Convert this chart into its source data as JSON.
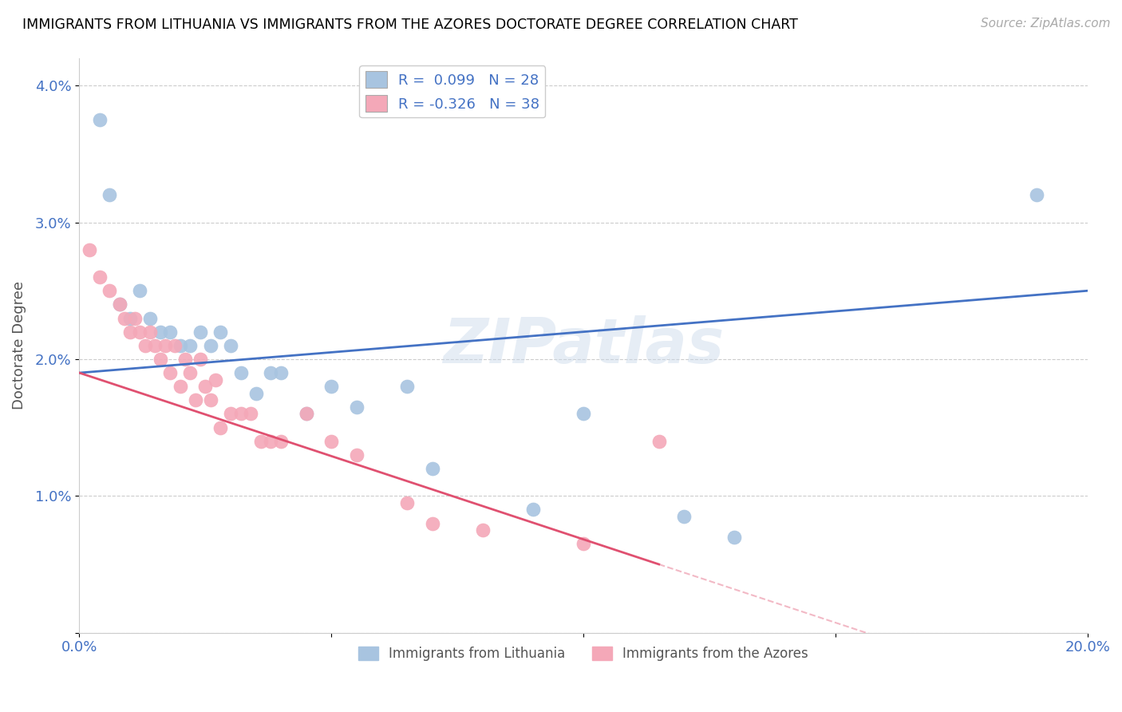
{
  "title": "IMMIGRANTS FROM LITHUANIA VS IMMIGRANTS FROM THE AZORES DOCTORATE DEGREE CORRELATION CHART",
  "source": "Source: ZipAtlas.com",
  "ylabel": "Doctorate Degree",
  "xlim": [
    0.0,
    0.2
  ],
  "ylim": [
    0.0,
    0.042
  ],
  "yticks": [
    0.0,
    0.01,
    0.02,
    0.03,
    0.04
  ],
  "ytick_labels": [
    "",
    "1.0%",
    "2.0%",
    "3.0%",
    "4.0%"
  ],
  "xticks": [
    0.0,
    0.05,
    0.1,
    0.15,
    0.2
  ],
  "xtick_labels": [
    "0.0%",
    "",
    "",
    "",
    "20.0%"
  ],
  "blue_color": "#a8c4e0",
  "pink_color": "#f4a8b8",
  "blue_line_color": "#4472c4",
  "pink_line_color": "#e05070",
  "watermark": "ZIPatlas",
  "legend_label1": "Immigrants from Lithuania",
  "legend_label2": "Immigrants from the Azores",
  "blue_r": "R =  0.099",
  "blue_n": "N = 28",
  "pink_r": "R = -0.326",
  "pink_n": "N = 38",
  "blue_points_x": [
    0.004,
    0.006,
    0.008,
    0.01,
    0.012,
    0.014,
    0.016,
    0.018,
    0.02,
    0.022,
    0.024,
    0.026,
    0.028,
    0.03,
    0.032,
    0.035,
    0.038,
    0.04,
    0.045,
    0.05,
    0.055,
    0.065,
    0.07,
    0.09,
    0.1,
    0.12,
    0.13,
    0.19
  ],
  "blue_points_y": [
    0.0375,
    0.032,
    0.024,
    0.023,
    0.025,
    0.023,
    0.022,
    0.022,
    0.021,
    0.021,
    0.022,
    0.021,
    0.022,
    0.021,
    0.019,
    0.0175,
    0.019,
    0.019,
    0.016,
    0.018,
    0.0165,
    0.018,
    0.012,
    0.009,
    0.016,
    0.0085,
    0.007,
    0.032
  ],
  "pink_points_x": [
    0.002,
    0.004,
    0.006,
    0.008,
    0.009,
    0.01,
    0.011,
    0.012,
    0.013,
    0.014,
    0.015,
    0.016,
    0.017,
    0.018,
    0.019,
    0.02,
    0.021,
    0.022,
    0.023,
    0.024,
    0.025,
    0.026,
    0.027,
    0.028,
    0.03,
    0.032,
    0.034,
    0.036,
    0.038,
    0.04,
    0.045,
    0.05,
    0.055,
    0.065,
    0.07,
    0.08,
    0.1,
    0.115
  ],
  "pink_points_y": [
    0.028,
    0.026,
    0.025,
    0.024,
    0.023,
    0.022,
    0.023,
    0.022,
    0.021,
    0.022,
    0.021,
    0.02,
    0.021,
    0.019,
    0.021,
    0.018,
    0.02,
    0.019,
    0.017,
    0.02,
    0.018,
    0.017,
    0.0185,
    0.015,
    0.016,
    0.016,
    0.016,
    0.014,
    0.014,
    0.014,
    0.016,
    0.014,
    0.013,
    0.0095,
    0.008,
    0.0075,
    0.0065,
    0.014
  ]
}
